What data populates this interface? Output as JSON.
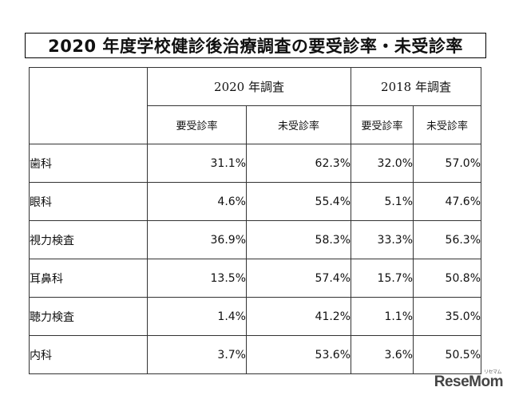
{
  "title": "2020 年度学校健診後治療調査の要受診率・未受診率",
  "table": {
    "groups": [
      "2020 年調査",
      "2018 年調査"
    ],
    "sub_headers": [
      "要受診率",
      "未受診率",
      "要受診率",
      "未受診率"
    ],
    "rows": [
      {
        "label": "歯科",
        "v2020_need": "31.1%",
        "v2020_unvisited": "62.3%",
        "v2018_need": "32.0%",
        "v2018_unvisited": "57.0%"
      },
      {
        "label": "眼科",
        "v2020_need": "4.6%",
        "v2020_unvisited": "55.4%",
        "v2018_need": "5.1%",
        "v2018_unvisited": "47.6%"
      },
      {
        "label": "視力検査",
        "v2020_need": "36.9%",
        "v2020_unvisited": "58.3%",
        "v2018_need": "33.3%",
        "v2018_unvisited": "56.3%"
      },
      {
        "label": "耳鼻科",
        "v2020_need": "13.5%",
        "v2020_unvisited": "57.4%",
        "v2018_need": "15.7%",
        "v2018_unvisited": "50.8%"
      },
      {
        "label": "聴力検査",
        "v2020_need": "1.4%",
        "v2020_unvisited": "41.2%",
        "v2018_need": "1.1%",
        "v2018_unvisited": "35.0%"
      },
      {
        "label": "内科",
        "v2020_need": "3.7%",
        "v2020_unvisited": "53.6%",
        "v2018_need": "3.6%",
        "v2018_unvisited": "50.5%"
      }
    ]
  },
  "watermark": {
    "text": "ReseMom",
    "kana": "リセマム"
  }
}
